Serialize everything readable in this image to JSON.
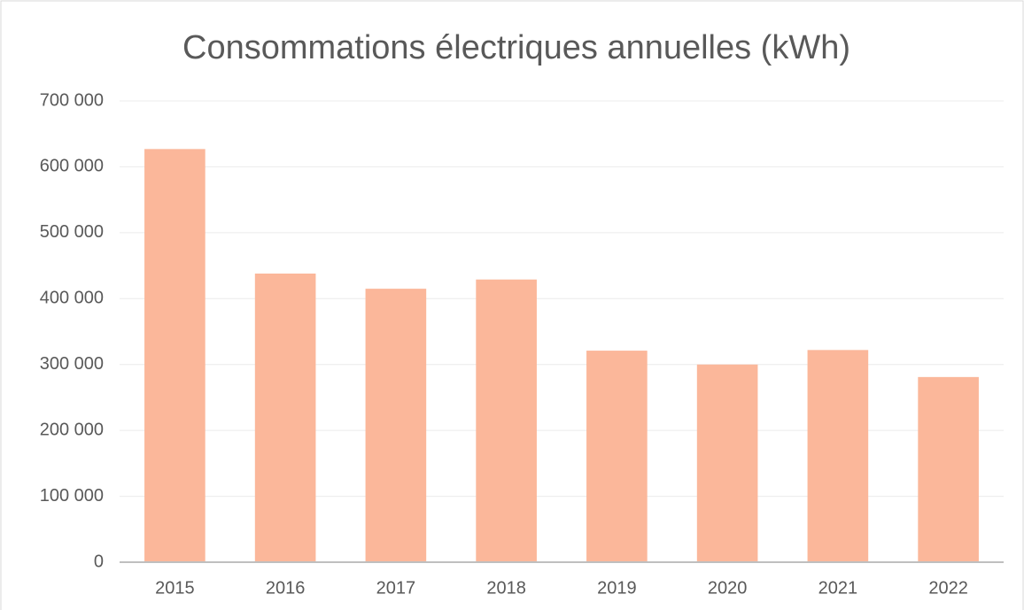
{
  "chart_data": {
    "type": "bar",
    "title": "Consommations électriques annuelles (kWh)",
    "categories": [
      "2015",
      "2016",
      "2017",
      "2018",
      "2019",
      "2020",
      "2021",
      "2022"
    ],
    "values": [
      627000,
      438000,
      415000,
      429000,
      321000,
      300000,
      322000,
      281000
    ],
    "color": "#fbb79a",
    "ylim": [
      0,
      700000
    ],
    "yticks": [
      0,
      {
        "value": 100000,
        "label": "100 000"
      },
      {
        "value": 200000,
        "label": "200 000"
      },
      {
        "value": 300000,
        "label": "300 000"
      },
      {
        "value": 400000,
        "label": "400 000"
      },
      {
        "value": 500000,
        "label": "500 000"
      },
      {
        "value": 600000,
        "label": "600 000"
      },
      {
        "value": 700000,
        "label": "700 000"
      }
    ],
    "grid": true
  }
}
